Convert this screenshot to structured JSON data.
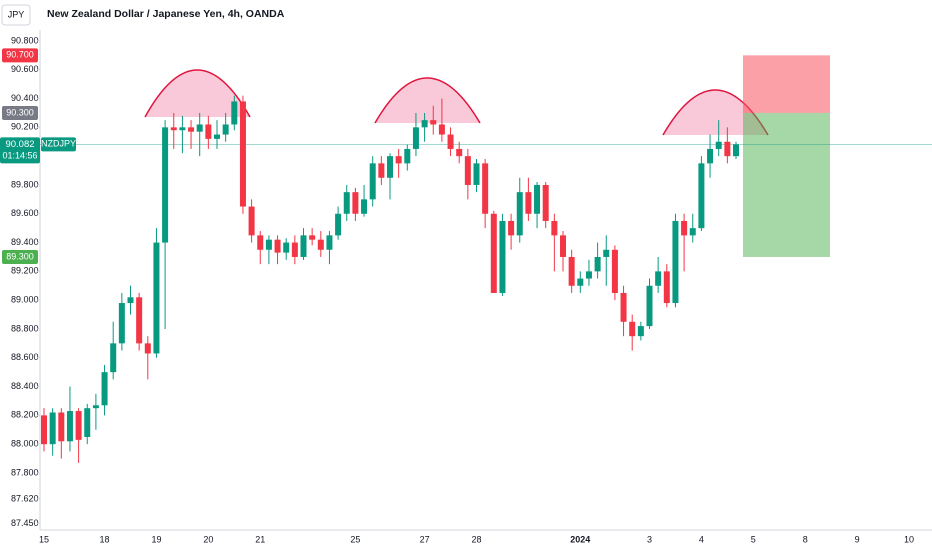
{
  "chart_data": {
    "type": "candlestick",
    "title": "New Zealand Dollar / Japanese Yen, 4h, OANDA",
    "currency": "JPY",
    "symbol": "NZDJPY",
    "countdown": "01:14:56",
    "up_color": "#089981",
    "down_color": "#f23645",
    "grid": false,
    "ylim": [
      87.404,
      90.876
    ],
    "yticks": [
      {
        "value": 87.45,
        "label": "87.450"
      },
      {
        "value": 87.62,
        "label": "87.620"
      },
      {
        "value": 87.8,
        "label": "87.800"
      },
      {
        "value": 88.0,
        "label": "88.000"
      },
      {
        "value": 88.2,
        "label": "88.200"
      },
      {
        "value": 88.4,
        "label": "88.400"
      },
      {
        "value": 88.6,
        "label": "88.600"
      },
      {
        "value": 88.8,
        "label": "88.800"
      },
      {
        "value": 89.0,
        "label": "89.000"
      },
      {
        "value": 89.2,
        "label": "89.200"
      },
      {
        "value": 89.4,
        "label": "89.400"
      },
      {
        "value": 89.6,
        "label": "89.600"
      },
      {
        "value": 89.8,
        "label": "89.800"
      },
      {
        "value": 90.2,
        "label": "90.200"
      },
      {
        "value": 90.4,
        "label": "90.400"
      },
      {
        "value": 90.6,
        "label": "90.600"
      },
      {
        "value": 90.8,
        "label": "90.800"
      }
    ],
    "last_price": {
      "value": 90.082,
      "label": "90.082"
    },
    "position": {
      "stop": {
        "value": 90.7,
        "label": "90.700"
      },
      "entry": {
        "value": 90.3,
        "label": "90.300"
      },
      "target": {
        "value": 89.3,
        "label": "89.300"
      }
    },
    "categories": [
      "15",
      null,
      null,
      null,
      null,
      null,
      null,
      "18",
      null,
      null,
      null,
      null,
      null,
      "19",
      null,
      null,
      null,
      null,
      null,
      "20",
      null,
      null,
      null,
      null,
      null,
      "21",
      null,
      null,
      null,
      null,
      null,
      null,
      null,
      null,
      null,
      null,
      "25",
      null,
      null,
      null,
      null,
      null,
      null,
      null,
      "27",
      null,
      null,
      null,
      null,
      null,
      "28",
      null,
      null,
      null,
      null,
      null,
      null,
      null,
      null,
      null,
      null,
      null,
      "2024",
      null,
      null,
      null,
      null,
      null,
      null,
      null,
      "3",
      null,
      null,
      null,
      null,
      null,
      "4",
      null,
      null,
      null,
      null,
      null,
      "5",
      null,
      null,
      null,
      null,
      null,
      "8",
      null,
      null,
      null,
      null,
      null,
      "9",
      null,
      null,
      null,
      null,
      null,
      "10",
      null
    ],
    "open": [
      88.2,
      88.0,
      88.22,
      88.02,
      88.23,
      88.05,
      88.25,
      88.27,
      88.5,
      88.7,
      88.98,
      89.02,
      88.7,
      88.63,
      89.4,
      90.2,
      90.18,
      90.2,
      90.17,
      90.22,
      90.12,
      90.15,
      90.22,
      90.38,
      89.65,
      89.45,
      89.35,
      89.42,
      89.33,
      89.4,
      89.3,
      89.45,
      89.42,
      89.35,
      89.45,
      89.6,
      89.75,
      89.6,
      89.7,
      89.95,
      89.85,
      90.0,
      89.95,
      90.05,
      90.2,
      90.25,
      90.22,
      90.15,
      90.05,
      90.0,
      89.8,
      89.95,
      89.6,
      89.05,
      89.55,
      89.45,
      89.75,
      89.6,
      89.8,
      89.55,
      89.45,
      89.3,
      89.1,
      89.15,
      89.2,
      89.3,
      89.35,
      89.05,
      88.85,
      88.75,
      88.82,
      89.1,
      89.2,
      88.98,
      89.55,
      89.45,
      89.5,
      89.95,
      90.05,
      90.1,
      90.0,
      null,
      null,
      null,
      null,
      null,
      null,
      null,
      null,
      null,
      null,
      null,
      null,
      null,
      null,
      null,
      null,
      null,
      null,
      null,
      null,
      null
    ],
    "high": [
      88.25,
      88.25,
      88.25,
      88.4,
      88.25,
      88.28,
      88.35,
      88.55,
      88.85,
      89.05,
      89.1,
      89.05,
      88.75,
      89.5,
      90.25,
      90.3,
      90.28,
      90.25,
      90.3,
      90.28,
      90.25,
      90.3,
      90.42,
      90.42,
      89.7,
      89.48,
      89.45,
      89.45,
      89.43,
      89.45,
      89.5,
      89.5,
      89.48,
      89.48,
      89.65,
      89.8,
      89.78,
      89.8,
      90.0,
      90.0,
      90.02,
      90.05,
      90.08,
      90.3,
      90.3,
      90.35,
      90.4,
      90.2,
      90.1,
      90.05,
      89.98,
      89.98,
      89.62,
      89.6,
      89.6,
      89.85,
      89.85,
      89.82,
      89.82,
      89.6,
      89.48,
      89.35,
      89.2,
      89.28,
      89.4,
      89.45,
      89.38,
      89.1,
      88.9,
      88.85,
      89.15,
      89.3,
      89.25,
      89.6,
      89.6,
      89.6,
      90.0,
      90.15,
      90.25,
      90.2,
      90.1,
      null,
      null,
      null,
      null,
      null,
      null,
      null,
      null,
      null,
      null,
      null,
      null,
      null,
      null,
      null,
      null,
      null,
      null,
      null,
      null,
      null
    ],
    "low": [
      87.95,
      87.92,
      87.9,
      87.95,
      87.87,
      88.0,
      88.1,
      88.2,
      88.45,
      88.65,
      88.9,
      88.65,
      88.45,
      88.6,
      88.8,
      90.05,
      90.02,
      90.05,
      90.0,
      90.05,
      90.05,
      90.1,
      90.18,
      89.6,
      89.4,
      89.25,
      89.25,
      89.25,
      89.28,
      89.25,
      89.28,
      89.38,
      89.3,
      89.25,
      89.42,
      89.55,
      89.55,
      89.58,
      89.65,
      89.8,
      89.7,
      89.85,
      89.9,
      90.0,
      90.1,
      90.15,
      90.1,
      90.0,
      89.95,
      89.7,
      89.75,
      89.5,
      89.05,
      89.03,
      89.35,
      89.4,
      89.55,
      89.5,
      89.5,
      89.2,
      89.2,
      89.05,
      89.05,
      89.1,
      89.15,
      89.1,
      89.0,
      88.75,
      88.65,
      88.72,
      88.8,
      89.05,
      88.95,
      88.95,
      89.2,
      89.4,
      89.48,
      89.85,
      90.0,
      89.95,
      89.98,
      null,
      null,
      null,
      null,
      null,
      null,
      null,
      null,
      null,
      null,
      null,
      null,
      null,
      null,
      null,
      null,
      null,
      null,
      null,
      null,
      null
    ],
    "close": [
      88.0,
      88.22,
      88.02,
      88.23,
      88.03,
      88.25,
      88.27,
      88.5,
      88.7,
      88.98,
      89.02,
      88.7,
      88.63,
      89.4,
      90.2,
      90.18,
      90.2,
      90.17,
      90.22,
      90.12,
      90.15,
      90.22,
      90.38,
      89.65,
      89.45,
      89.35,
      89.42,
      89.33,
      89.4,
      89.3,
      89.45,
      89.42,
      89.35,
      89.45,
      89.6,
      89.75,
      89.6,
      89.7,
      89.95,
      89.85,
      90.0,
      89.95,
      90.05,
      90.2,
      90.25,
      90.22,
      90.15,
      90.05,
      90.0,
      89.8,
      89.95,
      89.6,
      89.05,
      89.55,
      89.45,
      89.75,
      89.6,
      89.8,
      89.55,
      89.45,
      89.3,
      89.1,
      89.15,
      89.2,
      89.3,
      89.35,
      89.05,
      88.85,
      88.75,
      88.82,
      89.1,
      89.2,
      88.98,
      89.55,
      89.45,
      89.5,
      89.95,
      90.05,
      90.1,
      90.0,
      90.082,
      null,
      null,
      null,
      null,
      null,
      null,
      null,
      null,
      null,
      null,
      null,
      null,
      null,
      null,
      null,
      null,
      null,
      null,
      null,
      null,
      null
    ]
  }
}
